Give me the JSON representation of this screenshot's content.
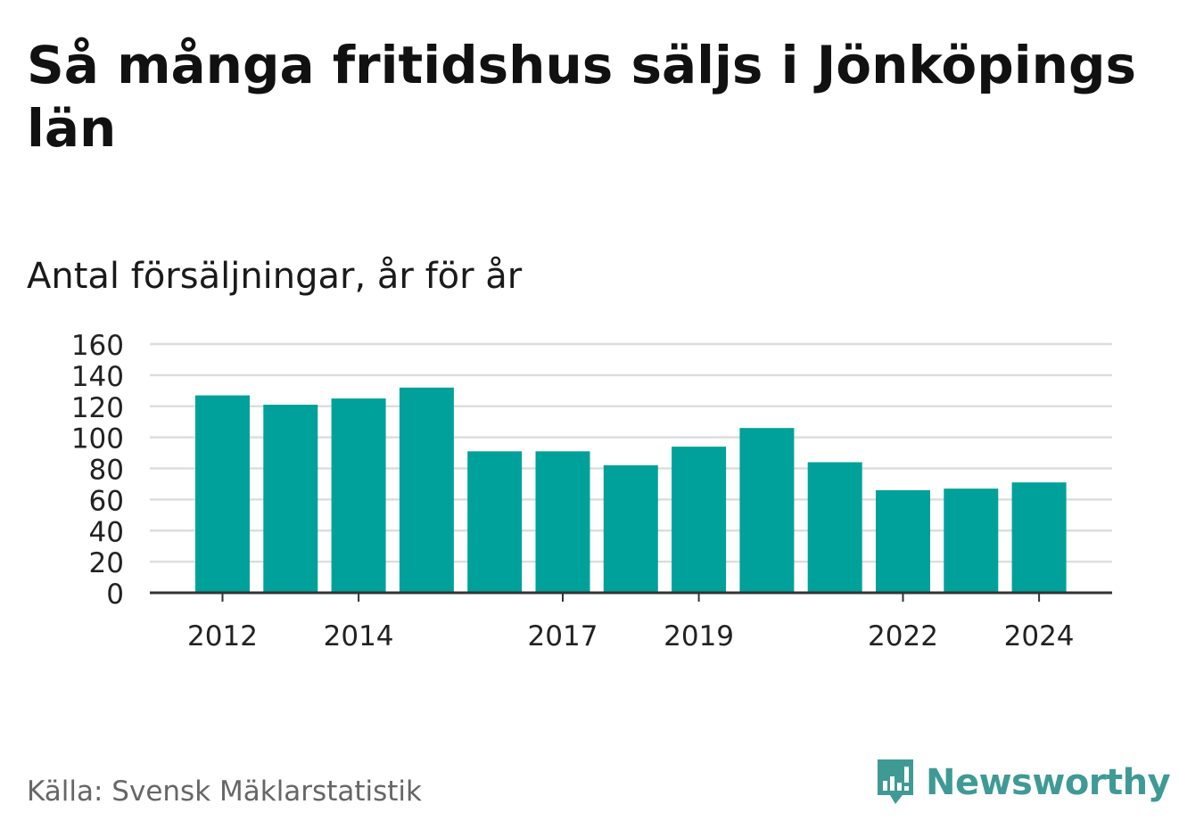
{
  "title": "Så många fritidshus säljs i Jönköpings län",
  "subtitle": "Antal försäljningar, år för år",
  "source": "Källa: Svensk Mäklarstatistik",
  "logo": {
    "text": "Newsworthy",
    "icon": "newsworthy-logo-icon",
    "color": "#3f9a96"
  },
  "colors": {
    "bar": "#00a19a",
    "grid": "#dddddd",
    "axis": "#333333",
    "text": "#222222"
  },
  "chart_data": {
    "type": "bar",
    "categories": [
      "2012",
      "2013",
      "2014",
      "2015",
      "2016",
      "2017",
      "2018",
      "2019",
      "2020",
      "2021",
      "2022",
      "2023",
      "2024"
    ],
    "values": [
      127,
      121,
      125,
      132,
      91,
      91,
      82,
      94,
      106,
      84,
      66,
      67,
      71
    ],
    "x_tick_labels": [
      "2012",
      "2014",
      "2017",
      "2019",
      "2022",
      "2024"
    ],
    "y_ticks": [
      0,
      20,
      40,
      60,
      80,
      100,
      120,
      140,
      160
    ],
    "ylim": [
      0,
      160
    ],
    "xlabel": "",
    "ylabel": "",
    "grid": true,
    "legend": "none"
  }
}
